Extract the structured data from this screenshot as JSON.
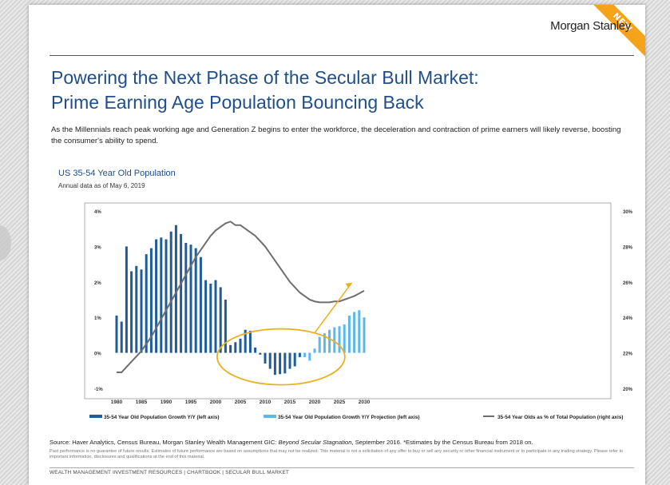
{
  "ribbon": "NEW",
  "brand": "Morgan Stanley",
  "title_line1": "Powering the Next Phase of the Secular Bull Market:",
  "title_line2": "Prime Earning Age Population Bouncing Back",
  "intro": "As the Millennials reach peak working age and Generation Z begins to enter the workforce, the deceleration and contraction of prime earners will likely reverse, boosting the consumer's ability to spend.",
  "source_prefix": "Source: Haver Analytics, Census Bureau, Morgan Stanley Wealth Management GIC: ",
  "source_italic": "Beyond Secular Stagnation",
  "source_suffix": ", September 2016. *Estimates by the Census Bureau from 2018 on.",
  "disclaimer": "Past performance is no guarantee of future results. Estimates of future performance are based on assumptions that may not be realized. This material is not a solicitation of any offer to buy or sell any security or other financial instrument or to participate in any trading strategy. Please refer to important information, disclosures and qualifications at the end of this material.",
  "footer": "WEALTH MANAGEMENT INVESTMENT RESOURCES | CHARTBOOK | SECULAR BULL MARKET",
  "colors": {
    "historical": "#1f5c99",
    "projection": "#5bb8e8",
    "line": "#6e6e6e",
    "highlight": "#e8b020"
  },
  "chart_data": {
    "type": "bar",
    "title": "US 35-54 Year Old Population",
    "subtitle": "Annual data as of May 6, 2019",
    "x_ticks": [
      1980,
      1985,
      1990,
      1995,
      2000,
      2005,
      2010,
      2015,
      2020,
      2025,
      2030
    ],
    "left_axis": {
      "range": [
        -1,
        4
      ],
      "ticks": [
        "-1%",
        "0%",
        "1%",
        "2%",
        "3%",
        "4%"
      ]
    },
    "right_axis": {
      "range": [
        20,
        30
      ],
      "ticks": [
        "20%",
        "22%",
        "24%",
        "26%",
        "28%",
        "30%"
      ]
    },
    "series": [
      {
        "name": "35-54 Year Old Population Growth Y/Y (left axis)",
        "kind": "bar",
        "years": [
          1980,
          1981,
          1982,
          1983,
          1984,
          1985,
          1986,
          1987,
          1988,
          1989,
          1990,
          1991,
          1992,
          1993,
          1994,
          1995,
          1996,
          1997,
          1998,
          1999,
          2000,
          2001,
          2002,
          2003,
          2004,
          2005,
          2006,
          2007,
          2008,
          2009,
          2010,
          2011,
          2012,
          2013,
          2014,
          2015,
          2016,
          2017
        ],
        "values": [
          1.05,
          0.88,
          3.0,
          2.3,
          2.45,
          2.35,
          2.78,
          2.95,
          3.2,
          3.25,
          3.2,
          3.42,
          3.6,
          3.35,
          3.1,
          3.05,
          2.95,
          2.7,
          2.05,
          1.95,
          2.05,
          1.85,
          1.5,
          0.22,
          0.3,
          0.4,
          0.65,
          0.62,
          0.15,
          -0.05,
          -0.3,
          -0.45,
          -0.62,
          -0.6,
          -0.58,
          -0.45,
          -0.38,
          -0.12
        ]
      },
      {
        "name": "35-54 Year Old Population Growth Y/Y Projection (left axis)",
        "kind": "bar",
        "years": [
          2018,
          2019,
          2020,
          2021,
          2022,
          2023,
          2024,
          2025,
          2026,
          2027,
          2028,
          2029,
          2030
        ],
        "values": [
          -0.12,
          -0.22,
          0.12,
          0.45,
          0.55,
          0.65,
          0.72,
          0.75,
          0.8,
          1.05,
          1.15,
          1.2,
          1.0
        ]
      },
      {
        "name": "35-54 Year Olds as % of Total Population (right axis)",
        "kind": "line",
        "years": [
          1980,
          1981,
          1982,
          1983,
          1984,
          1985,
          1986,
          1987,
          1988,
          1989,
          1990,
          1991,
          1992,
          1993,
          1994,
          1995,
          1996,
          1997,
          1998,
          1999,
          2000,
          2001,
          2002,
          2003,
          2004,
          2005,
          2006,
          2007,
          2008,
          2009,
          2010,
          2011,
          2012,
          2013,
          2014,
          2015,
          2016,
          2017,
          2018,
          2019,
          2020,
          2021,
          2022,
          2023,
          2024,
          2025,
          2026,
          2027,
          2028,
          2029,
          2030
        ],
        "values": [
          20.9,
          20.9,
          21.2,
          21.5,
          21.8,
          22.1,
          22.5,
          22.9,
          23.4,
          23.9,
          24.4,
          24.9,
          25.4,
          25.9,
          26.4,
          26.9,
          27.4,
          27.8,
          28.2,
          28.6,
          28.9,
          29.1,
          29.3,
          29.4,
          29.2,
          29.2,
          29.0,
          28.8,
          28.6,
          28.3,
          28.0,
          27.6,
          27.2,
          26.8,
          26.4,
          26.0,
          25.7,
          25.4,
          25.2,
          25.0,
          24.9,
          24.85,
          24.85,
          24.85,
          24.9,
          24.9,
          25.0,
          25.1,
          25.2,
          25.35,
          25.5
        ]
      }
    ],
    "legend_position": "bottom",
    "grid": false
  }
}
